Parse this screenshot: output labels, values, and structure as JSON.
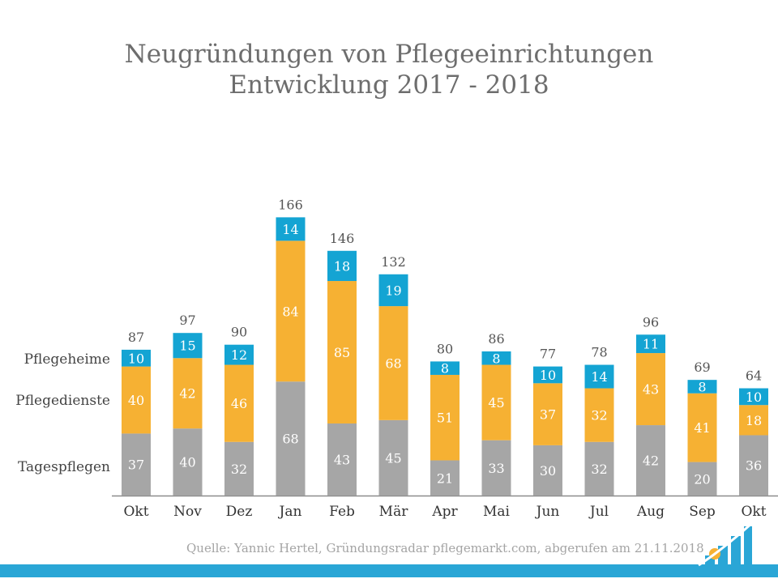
{
  "title": {
    "line1": "Neugründungen von Pflegeeinrichtungen",
    "line2": "Entwicklung 2017 - 2018"
  },
  "source": "Quelle: Yannic Hertel, Gründungsradar pflegemarkt.com, abgerufen am 21.11.2018",
  "colors": {
    "Tagespflegen": "#a6a6a6",
    "Pflegedienste": "#f6b133",
    "Pflegeheime": "#14a4d3",
    "title": "#6d6d6d",
    "band": "#2aa6d6"
  },
  "chart_data": {
    "type": "bar",
    "stacked": true,
    "categories": [
      "Okt",
      "Nov",
      "Dez",
      "Jan",
      "Feb",
      "Mär",
      "Apr",
      "Mai",
      "Jun",
      "Jul",
      "Aug",
      "Sep",
      "Okt"
    ],
    "series": [
      {
        "name": "Tagespflegen",
        "values": [
          37,
          40,
          32,
          68,
          43,
          45,
          21,
          33,
          30,
          32,
          42,
          20,
          36
        ]
      },
      {
        "name": "Pflegedienste",
        "values": [
          40,
          42,
          46,
          84,
          85,
          68,
          51,
          45,
          37,
          32,
          43,
          41,
          18
        ]
      },
      {
        "name": "Pflegeheime",
        "values": [
          10,
          15,
          12,
          14,
          18,
          19,
          8,
          8,
          10,
          14,
          11,
          8,
          10
        ]
      }
    ],
    "totals": [
      87,
      97,
      90,
      166,
      146,
      132,
      80,
      86,
      77,
      78,
      96,
      69,
      64
    ],
    "legend": [
      "Pflegeheime",
      "Pflegedienste",
      "Tagespflegen"
    ],
    "legend_position": "left",
    "ylim": [
      0,
      166
    ],
    "grid": false
  }
}
